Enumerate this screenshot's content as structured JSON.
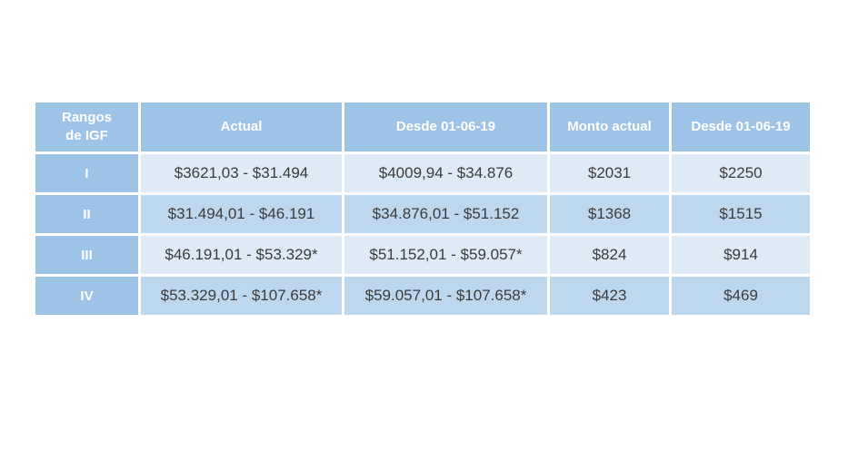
{
  "colors": {
    "header_bg": "#9dc3e6",
    "row_light_bg": "#deebf7",
    "row_dark_bg": "#bdd7ee",
    "header_text": "#ffffff",
    "cell_text": "#3b3b3b",
    "border": "#ffffff",
    "page_bg": "#ffffff"
  },
  "chart_data": {
    "type": "table",
    "title": "",
    "columns": [
      "Rangos de IGF",
      "Actual",
      "Desde 01-06-19",
      "Monto actual",
      "Desde 01-06-19"
    ],
    "rows": [
      [
        "I",
        "$3621,03 - $31.494",
        "$4009,94 - $34.876",
        "$2031",
        "$2250"
      ],
      [
        "II",
        "$31.494,01 - $46.191",
        "$34.876,01 - $51.152",
        "$1368",
        "$1515"
      ],
      [
        "III",
        "$46.191,01 - $53.329*",
        "$51.152,01 - $59.057*",
        "$824",
        "$914"
      ],
      [
        "IV",
        "$53.329,01 - $107.658*",
        "$59.057,01 - $107.658*",
        "$423",
        "$469"
      ]
    ]
  }
}
